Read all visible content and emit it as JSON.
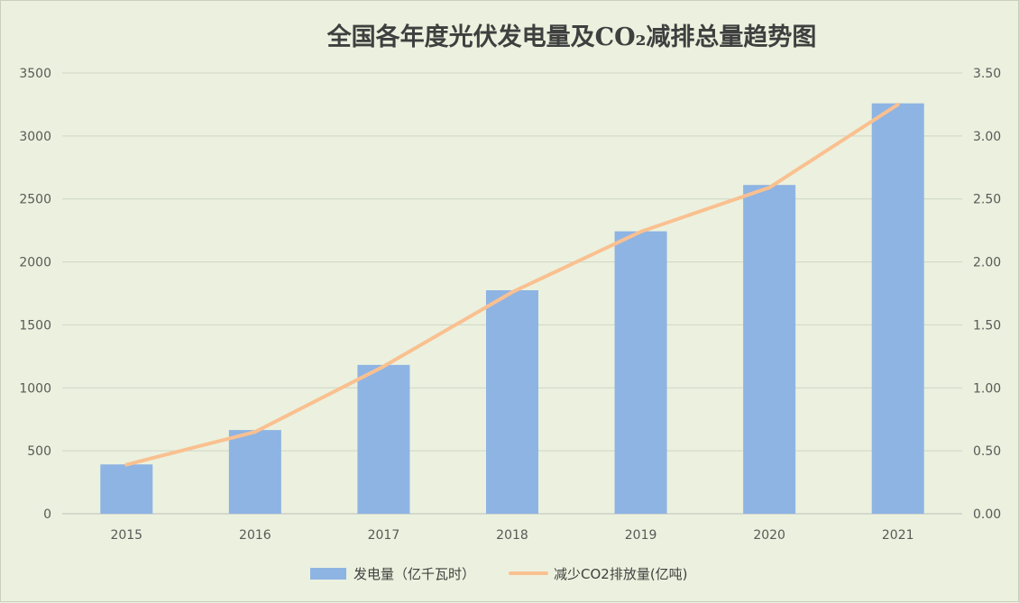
{
  "chart_data": {
    "type": "bar",
    "title": "全国各年度光伏发电量及CO₂减排总量趋势图",
    "categories": [
      "2015",
      "2016",
      "2017",
      "2018",
      "2019",
      "2020",
      "2021"
    ],
    "series": [
      {
        "name": "发电量（亿千瓦时）",
        "type": "bar",
        "axis": "left",
        "color": "#8eb4e3",
        "values": [
          392,
          665,
          1182,
          1775,
          2243,
          2611,
          3259
        ]
      },
      {
        "name": "减少CO2排放量(亿吨)",
        "type": "line",
        "axis": "right",
        "color": "#fac090",
        "values": [
          0.39,
          0.65,
          1.17,
          1.76,
          2.24,
          2.59,
          3.25
        ]
      }
    ],
    "y_left": {
      "ylim": [
        0,
        3500
      ],
      "ticks": [
        "0",
        "500",
        "1000",
        "1500",
        "2000",
        "2500",
        "3000",
        "3500"
      ]
    },
    "y_right": {
      "ylim": [
        0,
        3.5
      ],
      "ticks": [
        "0.00",
        "0.50",
        "1.00",
        "1.50",
        "2.00",
        "2.50",
        "3.00",
        "3.50"
      ]
    },
    "grid": true,
    "legend_position": "bottom"
  }
}
